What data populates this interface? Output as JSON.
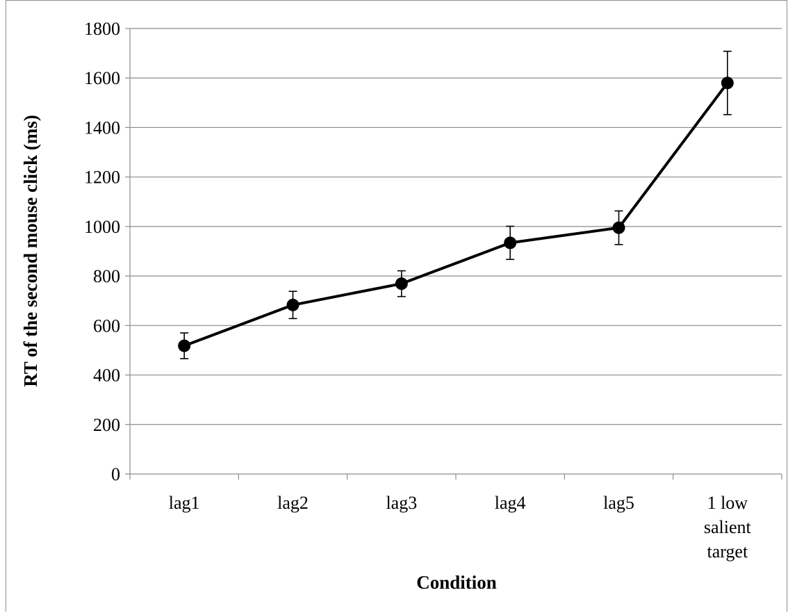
{
  "chart_data": {
    "type": "line",
    "title": "",
    "xlabel": "Condition",
    "ylabel": "RT of the second mouse click (ms)",
    "categories": [
      [
        "lag1"
      ],
      [
        "lag2"
      ],
      [
        "lag3"
      ],
      [
        "lag4"
      ],
      [
        "lag5"
      ],
      [
        "1 low",
        "salient",
        "target"
      ]
    ],
    "series": [
      {
        "values": [
          518,
          683,
          769,
          934,
          995,
          1580
        ],
        "error": [
          52,
          55,
          52,
          67,
          68,
          128
        ],
        "color": "#000000",
        "marker": "circle"
      }
    ],
    "ylim": [
      0,
      1800
    ],
    "yticks": [
      0,
      200,
      400,
      600,
      800,
      1000,
      1200,
      1400,
      1600,
      1800
    ],
    "grid": "horizontal",
    "legend": "none"
  }
}
